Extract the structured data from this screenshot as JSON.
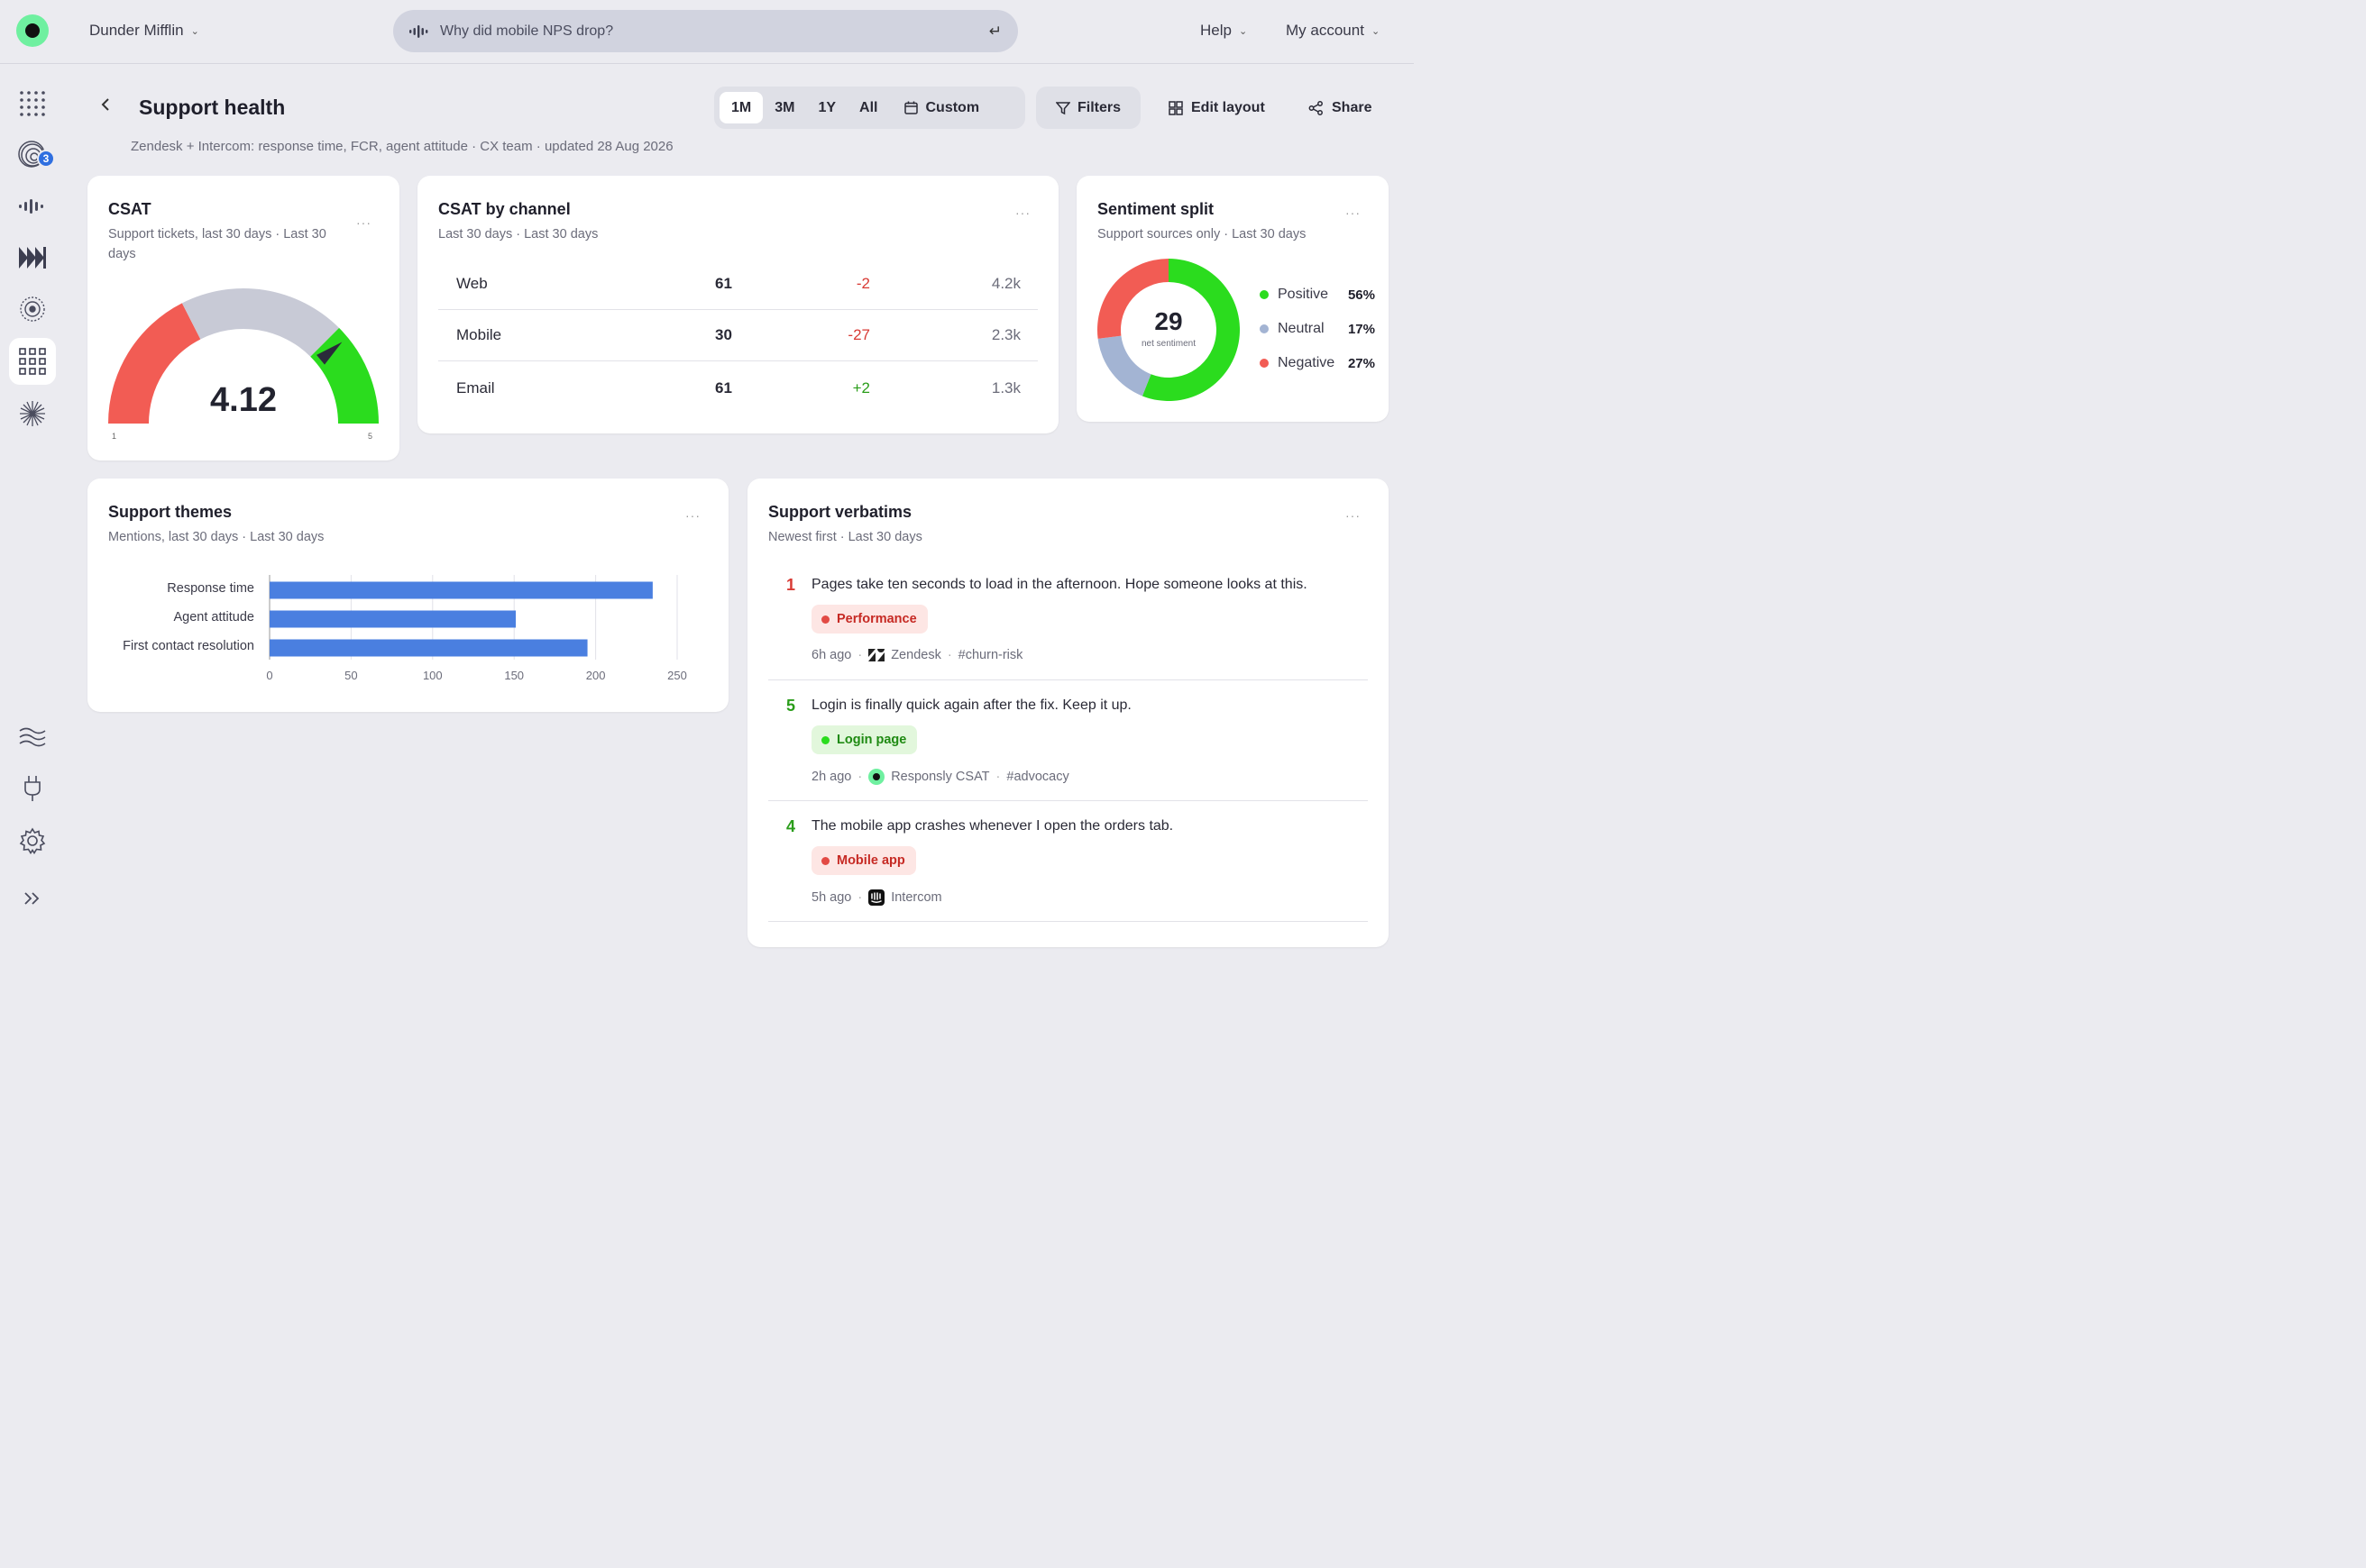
{
  "top": {
    "org": "Dunder Mifflin",
    "search_placeholder": "Why did mobile NPS drop?",
    "help": "Help",
    "account": "My account"
  },
  "sidebar": {
    "items": [
      {
        "name": "grid-dots-icon"
      },
      {
        "name": "signals-icon",
        "badge": "3"
      },
      {
        "name": "waveform-icon"
      },
      {
        "name": "fast-forward-icon"
      },
      {
        "name": "radar-icon"
      },
      {
        "name": "dashboards-icon",
        "active": true
      },
      {
        "name": "starburst-icon"
      },
      {
        "name": "waves-icon"
      },
      {
        "name": "plug-icon"
      },
      {
        "name": "settings-icon"
      },
      {
        "name": "expand-icon"
      }
    ]
  },
  "header": {
    "title": "Support health",
    "subtitle": "Zendesk + Intercom: response time, FCR, agent attitude · CX team · updated 28 Aug 2026",
    "ranges": [
      "1M",
      "3M",
      "1Y",
      "All"
    ],
    "active_range": "1M",
    "custom": "Custom",
    "filters": "Filters",
    "edit_layout": "Edit layout",
    "share": "Share"
  },
  "csat": {
    "title": "CSAT",
    "subtitle": "Support tickets, last 30 days · Last 30 days",
    "value": "4.12",
    "min": "1",
    "max": "5",
    "score": 4.12,
    "colors": {
      "low": "#f25c54",
      "mid": "#c8cad6",
      "high": "#2bdc1e",
      "needle": "#2a2b3a"
    }
  },
  "channels": {
    "title": "CSAT by channel",
    "subtitle": "Last 30 days · Last 30 days",
    "rows": [
      {
        "name": "Web",
        "csat": "61",
        "delta": "-2",
        "volume": "4.2k",
        "trend": "down"
      },
      {
        "name": "Mobile",
        "csat": "30",
        "delta": "-27",
        "volume": "2.3k",
        "trend": "down"
      },
      {
        "name": "Email",
        "csat": "61",
        "delta": "+2",
        "volume": "1.3k",
        "trend": "up"
      }
    ],
    "colors": {
      "down": "#d83a34",
      "up": "#2a9d1a"
    }
  },
  "sentiment": {
    "title": "Sentiment split",
    "subtitle": "Support sources only · Last 30 days",
    "center_value": "29",
    "center_label": "net sentiment",
    "items": [
      {
        "label": "Positive",
        "pct": "56%",
        "value": 56,
        "color": "#2bdc1e"
      },
      {
        "label": "Neutral",
        "pct": "17%",
        "value": 17,
        "color": "#a3b4d3"
      },
      {
        "label": "Negative",
        "pct": "27%",
        "value": 27,
        "color": "#f25c54"
      }
    ]
  },
  "themes": {
    "title": "Support themes",
    "subtitle": "Mentions, last 30 days · Last 30 days"
  },
  "chart_data": {
    "type": "bar",
    "orientation": "horizontal",
    "categories": [
      "Response time",
      "Agent attitude",
      "First contact resolution"
    ],
    "values": [
      235,
      151,
      195
    ],
    "xlim": [
      0,
      250
    ],
    "xticks": [
      "0",
      "50",
      "100",
      "150",
      "200",
      "250"
    ],
    "grid": true,
    "color": "#4a7fe0"
  },
  "verbatims": {
    "title": "Support verbatims",
    "subtitle": "Newest first · Last 30 days",
    "items": [
      {
        "score": "1",
        "score_color": "#d83a34",
        "text": "Pages take ten seconds to load in the afternoon. Hope someone looks at this.",
        "tag": "Performance",
        "tag_kind": "neg",
        "time": "6h ago",
        "source": "Zendesk",
        "source_icon": "zendesk-icon",
        "hashtag": "#churn-risk"
      },
      {
        "score": "5",
        "score_color": "#2a9d1a",
        "text": "Login is finally quick again after the fix. Keep it up.",
        "tag": "Login page",
        "tag_kind": "pos",
        "time": "2h ago",
        "source": "Responsly CSAT",
        "source_icon": "responsly-icon",
        "hashtag": "#advocacy"
      },
      {
        "score": "4",
        "score_color": "#2a9d1a",
        "text": "The mobile app crashes whenever I open the orders tab.",
        "tag": "Mobile app",
        "tag_kind": "neg",
        "time": "5h ago",
        "source": "Intercom",
        "source_icon": "intercom-icon",
        "hashtag": ""
      }
    ],
    "tag_colors": {
      "neg_bg": "#fde6e4",
      "neg_fg": "#c62a24",
      "neg_dot": "#e24a44",
      "pos_bg": "#e2f7dc",
      "pos_fg": "#1f8a12",
      "pos_dot": "#2bdc1e"
    }
  }
}
